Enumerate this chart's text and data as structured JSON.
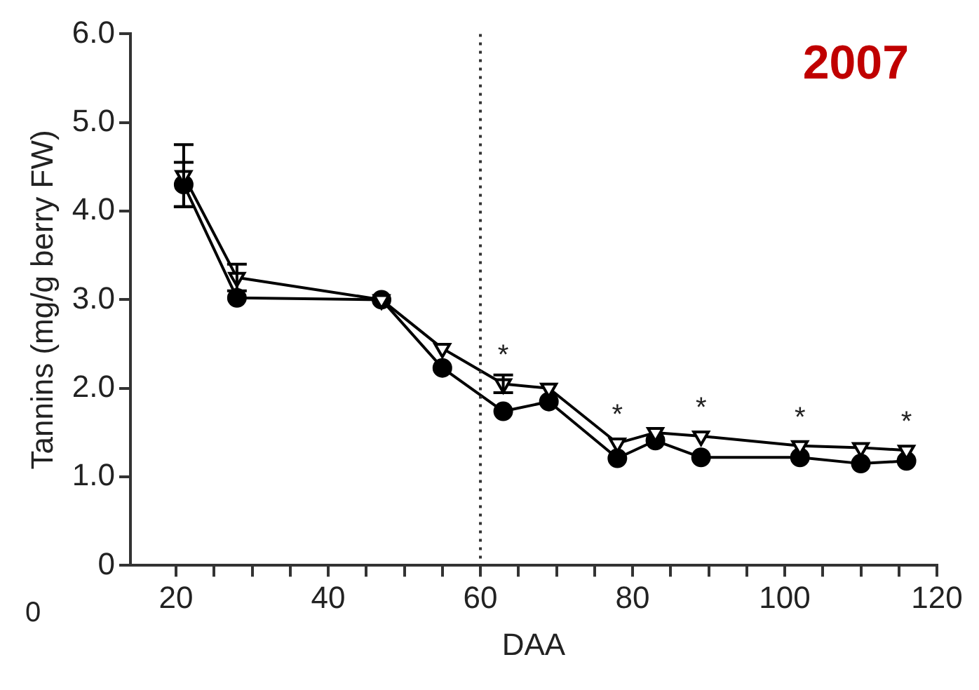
{
  "chart_data": {
    "type": "line",
    "title": "2007",
    "xlabel": "DAA",
    "ylabel": "Tannins (mg/g berry FW)",
    "x": [
      21,
      28,
      47,
      55,
      63,
      69,
      78,
      83,
      89,
      102,
      110,
      116
    ],
    "series": [
      {
        "color": "#000000",
        "marker": "circle",
        "values": [
          4.3,
          3.02,
          3.0,
          2.23,
          1.74,
          1.85,
          1.21,
          1.41,
          1.22,
          1.22,
          1.15,
          1.18
        ],
        "errors": [
          0.25,
          null,
          null,
          null,
          null,
          null,
          null,
          null,
          null,
          null,
          null,
          null
        ]
      },
      {
        "color": "#000000",
        "marker": "triangle",
        "values": [
          4.4,
          3.25,
          3.0,
          2.45,
          2.05,
          2.0,
          1.38,
          1.5,
          1.46,
          1.35,
          1.33,
          1.3
        ],
        "errors": [
          0.35,
          0.15,
          null,
          null,
          0.1,
          null,
          null,
          null,
          null,
          null,
          null,
          null
        ]
      }
    ],
    "xlim": [
      14,
      120
    ],
    "xticks": [
      20,
      {
        "value": 25,
        "label": null
      },
      {
        "value": 30,
        "label": null
      },
      {
        "value": 35,
        "label": null
      },
      40,
      {
        "value": 45,
        "label": null
      },
      {
        "value": 50,
        "label": null
      },
      {
        "value": 55,
        "label": null
      },
      60,
      {
        "value": 65,
        "label": null
      },
      {
        "value": 70,
        "label": null
      },
      {
        "value": 75,
        "label": null
      },
      80,
      {
        "value": 85,
        "label": null
      },
      {
        "value": 90,
        "label": null
      },
      {
        "value": 95,
        "label": null
      },
      100,
      {
        "value": 105,
        "label": null
      },
      {
        "value": 110,
        "label": null
      },
      {
        "value": 115,
        "label": null
      },
      120
    ],
    "ylim": [
      0,
      6
    ],
    "yticks": [
      0,
      {
        "value": 1,
        "label": "1.0"
      },
      {
        "value": 2,
        "label": "2.0"
      },
      {
        "value": 3,
        "label": "3.0"
      },
      {
        "value": 4,
        "label": "4.0"
      },
      {
        "value": 5,
        "label": "5.0"
      },
      {
        "value": 6,
        "label": "6.0"
      }
    ],
    "ref_lines": [
      {
        "axis": "x",
        "value": 60,
        "line_style": "dotted",
        "color": "#333333"
      }
    ],
    "annotations": [
      {
        "text": "*",
        "x": 63,
        "y": 2.05
      },
      {
        "text": "*",
        "x": 78,
        "y": 1.38
      },
      {
        "text": "*",
        "x": 89,
        "y": 1.46
      },
      {
        "text": "*",
        "x": 102,
        "y": 1.35
      },
      {
        "text": "*",
        "x": 116,
        "y": 1.3
      },
      "0"
    ],
    "grid": false,
    "legend": false,
    "line_style": "solid"
  }
}
